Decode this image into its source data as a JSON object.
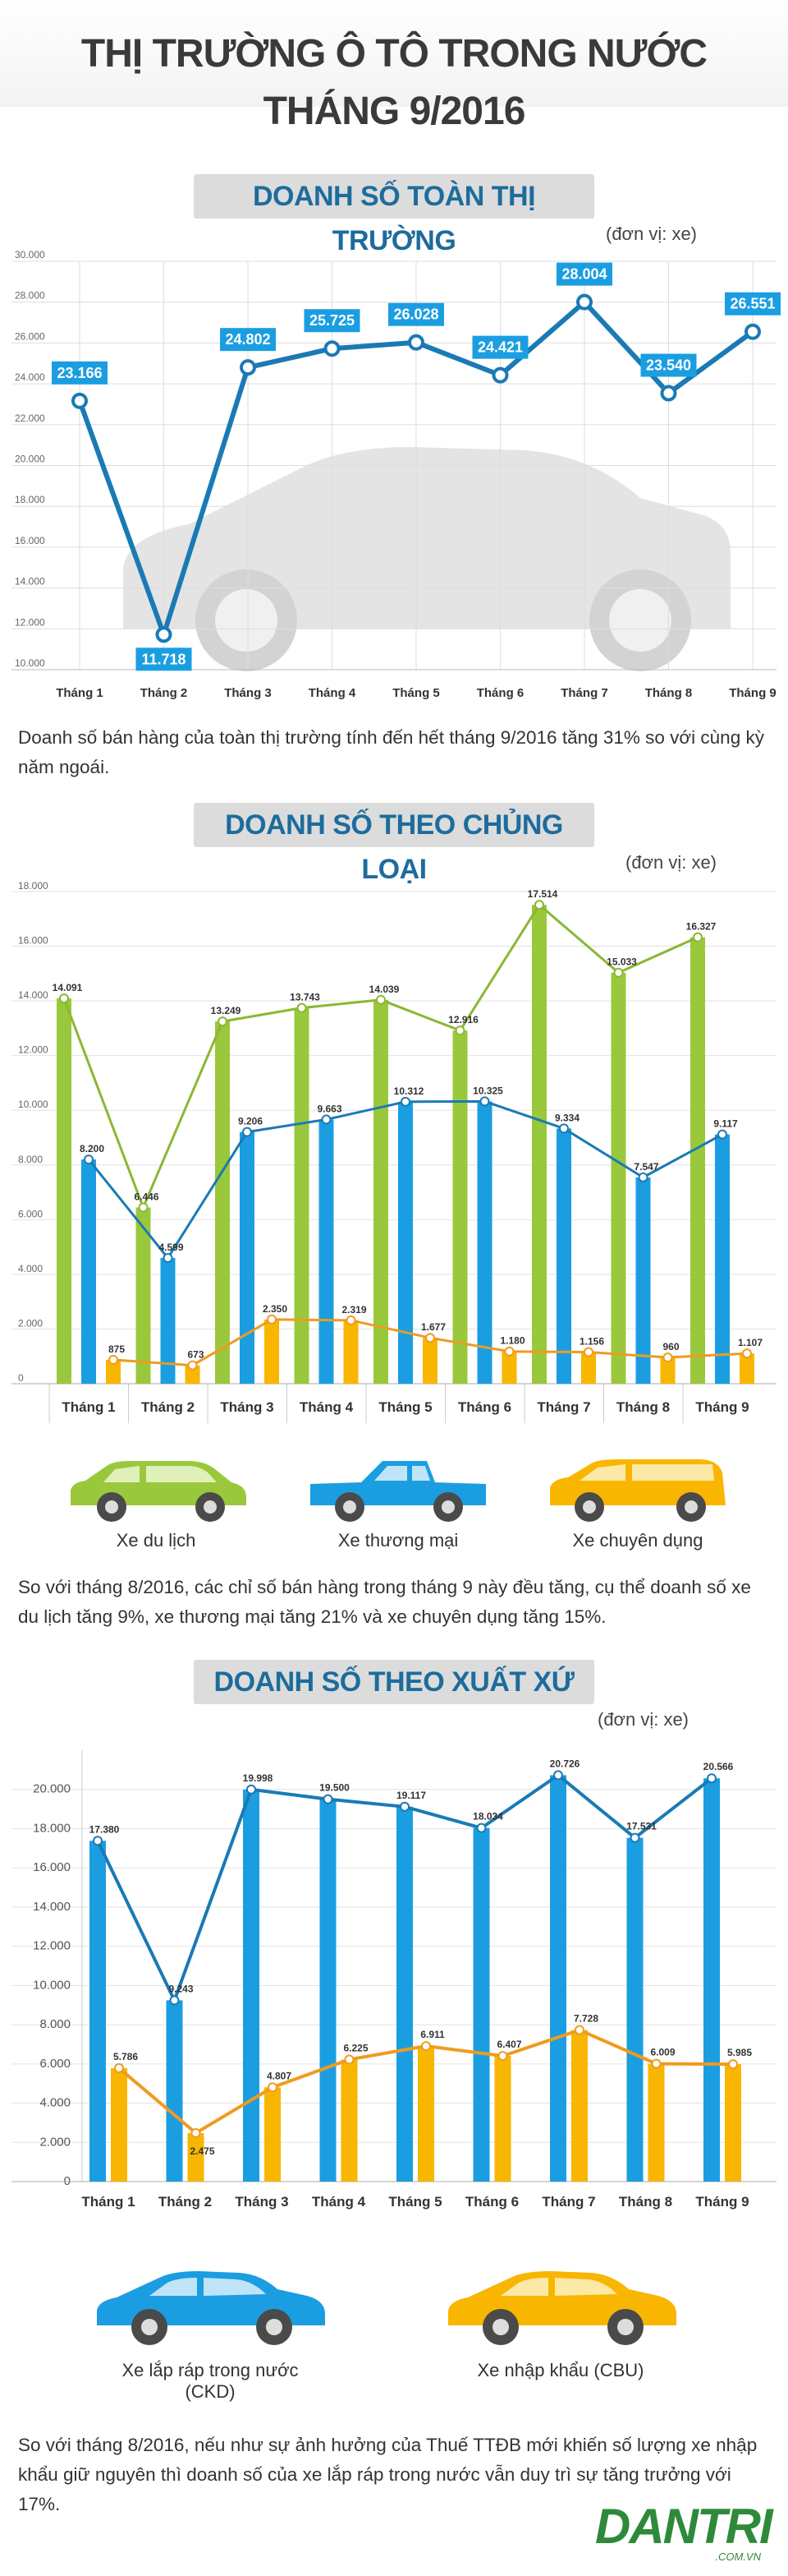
{
  "title": {
    "line1": "THỊ TRƯỜNG Ô TÔ TRONG NƯỚC",
    "line2": "THÁNG 9/2016"
  },
  "sections": [
    {
      "title": "DOANH SỐ TOÀN THỊ TRƯỜNG",
      "unit": "(đơn vị: xe)"
    },
    {
      "title": "DOANH SỐ THEO CHỦNG LOẠI",
      "unit": "(đơn vị: xe)"
    },
    {
      "title": "DOANH SỐ THEO XUẤT XỨ",
      "unit": "(đơn vị: xe)"
    }
  ],
  "paragraphs": [
    "Doanh số bán hàng của toàn thị trường tính đến hết tháng 9/2016 tăng 31% so với cùng kỳ năm ngoái.",
    "So với tháng 8/2016, các chỉ số bán hàng trong tháng 9 này đều tăng, cụ thể doanh số xe du lịch tăng 9%, xe thương mại tăng 21% và xe chuyên dụng tăng 15%.",
    "So với tháng 8/2016, nếu như sự ảnh hưởng của Thuế TTĐB mới khiến số lượng xe nhập khẩu giữ nguyên thì doanh số của xe lắp ráp trong nước vẫn duy trì sự tăng trưởng với 17%."
  ],
  "car_labels": {
    "chart2": [
      "Xe du lịch",
      "Xe thương mại",
      "Xe chuyên dụng"
    ],
    "chart3": [
      "Xe lắp ráp trong nước (CKD)",
      "Xe nhập khẩu (CBU)"
    ]
  },
  "colors": {
    "blue": "#1b9ee1",
    "line_blue": "#1a7ab5",
    "green": "#9ac83c",
    "line_green": "#8ab833",
    "orange": "#f8b600",
    "line_orange": "#ef9b1f",
    "title_blue": "#1d6c9c"
  },
  "logo": {
    "text": "DANTRI",
    "sub": ".COM.VN"
  },
  "chart_data": [
    {
      "type": "line",
      "title": "DOANH SỐ TOÀN THỊ TRƯỜNG",
      "categories": [
        "Tháng 1",
        "Tháng 2",
        "Tháng 3",
        "Tháng 4",
        "Tháng 5",
        "Tháng 6",
        "Tháng 7",
        "Tháng 8",
        "Tháng 9"
      ],
      "values": [
        23166,
        11718,
        24802,
        25725,
        26028,
        24421,
        28004,
        23540,
        26551
      ],
      "labels": [
        "23.166",
        "11.718",
        "24.802",
        "25.725",
        "26.028",
        "24.421",
        "28.004",
        "23.540",
        "26.551"
      ],
      "yticks": [
        "30.000",
        "28.000",
        "26.000",
        "24.000",
        "22.000",
        "20.000",
        "18.000",
        "16.000",
        "14.000",
        "12.000",
        "10.000"
      ],
      "ylim": [
        10000,
        30000
      ]
    },
    {
      "type": "bar",
      "title": "DOANH SỐ THEO CHỦNG LOẠI",
      "categories": [
        "Tháng 1",
        "Tháng 2",
        "Tháng 3",
        "Tháng 4",
        "Tháng 5",
        "Tháng 6",
        "Tháng 7",
        "Tháng 8",
        "Tháng 9"
      ],
      "series": [
        {
          "name": "Xe du lịch",
          "values": [
            14091,
            6446,
            13249,
            13743,
            14039,
            12916,
            17514,
            15033,
            16327
          ],
          "labels": [
            "14.091",
            "6.446",
            "13.249",
            "13.743",
            "14.039",
            "12.916",
            "17.514",
            "15.033",
            "16.327"
          ]
        },
        {
          "name": "Xe thương mại",
          "values": [
            8200,
            4599,
            9206,
            9663,
            10312,
            10325,
            9334,
            7547,
            9117
          ],
          "labels": [
            "8.200",
            "4.599",
            "9.206",
            "9.663",
            "10.312",
            "10.325",
            "9.334",
            "7.547",
            "9.117"
          ]
        },
        {
          "name": "Xe chuyên dụng",
          "values": [
            875,
            673,
            2350,
            2319,
            1677,
            1180,
            1156,
            960,
            1107
          ],
          "labels": [
            "875",
            "673",
            "2.350",
            "2.319",
            "1.677",
            "1.180",
            "1.156",
            "960",
            "1.107"
          ]
        }
      ],
      "yticks": [
        "18.000",
        "16.000",
        "14.000",
        "12.000",
        "10.000",
        "8.000",
        "6.000",
        "4.000",
        "2.000",
        "0"
      ],
      "ylim": [
        0,
        18000
      ]
    },
    {
      "type": "bar",
      "title": "DOANH SỐ THEO XUẤT XỨ",
      "categories": [
        "Tháng 1",
        "Tháng 2",
        "Tháng 3",
        "Tháng 4",
        "Tháng 5",
        "Tháng 6",
        "Tháng 7",
        "Tháng 8",
        "Tháng 9"
      ],
      "series": [
        {
          "name": "Xe lắp ráp trong nước (CKD)",
          "values": [
            17380,
            9243,
            19998,
            19500,
            19117,
            18034,
            20726,
            17531,
            20566
          ],
          "labels": [
            "17.380",
            "9.243",
            "19.998",
            "19.500",
            "19.117",
            "18.034",
            "20.726",
            "17.531",
            "20.566"
          ]
        },
        {
          "name": "Xe nhập khẩu (CBU)",
          "values": [
            5786,
            2475,
            4807,
            6225,
            6911,
            6407,
            7728,
            6009,
            5985
          ],
          "labels": [
            "5.786",
            "2.475",
            "4.807",
            "6.225",
            "6.911",
            "6.407",
            "7.728",
            "6.009",
            "5.985"
          ]
        }
      ],
      "yticks": [
        "20.000",
        "18.000",
        "16.000",
        "14.000",
        "12.000",
        "10.000",
        "8.000",
        "6.000",
        "4.000",
        "2.000",
        "0"
      ],
      "ylim": [
        0,
        22000
      ]
    }
  ]
}
